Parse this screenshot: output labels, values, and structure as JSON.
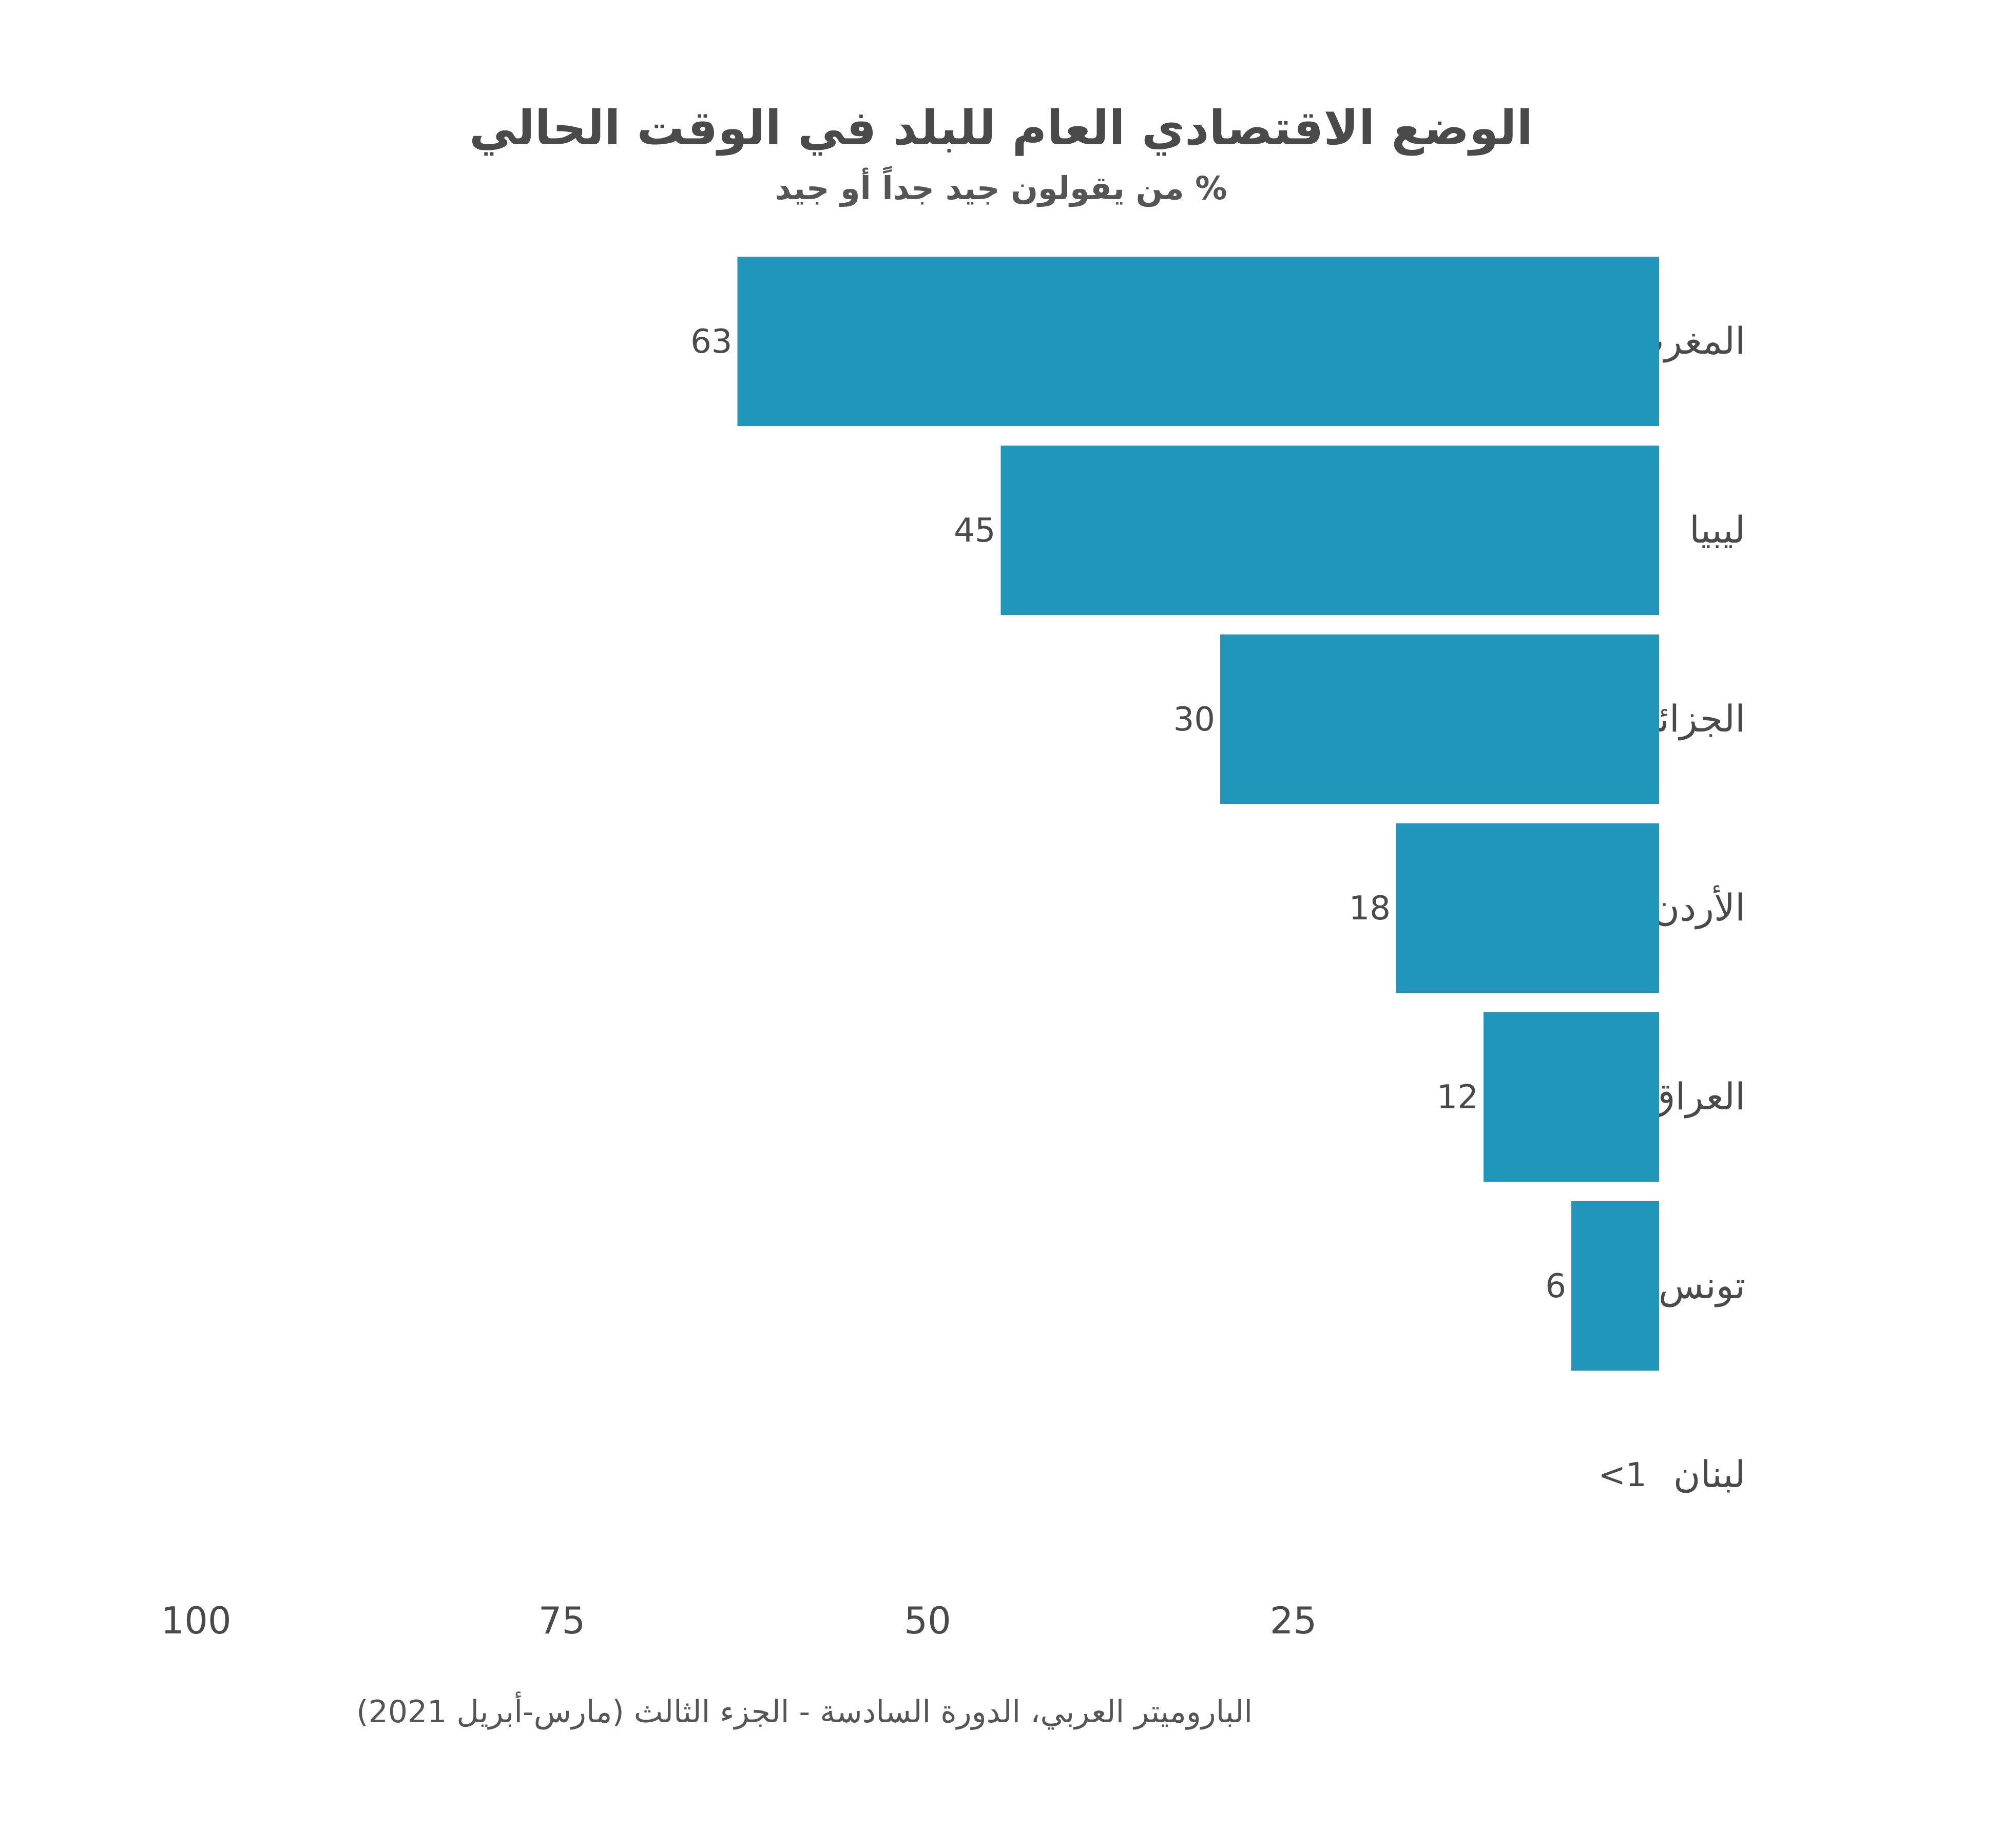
{
  "title": "الوضع الاقتصادي العام للبلد في الوقت الحالي",
  "subtitle": "% من يقولون جيد جداً أو جيد",
  "source": "الباروميتر العربي، الدورة السادسة - الجزء الثالث (مارس-أبريل 2021)",
  "colors": {
    "bar": "#2196bb",
    "text": "#4a4a4a"
  },
  "chart_data": {
    "type": "bar",
    "orientation": "horizontal",
    "direction": "right-to-left",
    "title": "الوضع الاقتصادي العام للبلد في الوقت الحالي",
    "subtitle": "% من يقولون جيد جداً أو جيد",
    "categories": [
      "المغرب",
      "ليبيا",
      "الجزائر",
      "الأردن",
      "العراق",
      "تونس",
      "لبنان"
    ],
    "values": [
      63,
      45,
      30,
      18,
      12,
      6,
      0.5
    ],
    "value_labels": [
      "63",
      "45",
      "30",
      "18",
      "12",
      "6",
      "<1"
    ],
    "xlim": [
      0,
      100
    ],
    "xticks": [
      25,
      50,
      75,
      100
    ],
    "xtick_labels": [
      "25",
      "50",
      "75",
      "100"
    ],
    "xlabel": "",
    "ylabel": "",
    "grid": false,
    "legend": "none"
  }
}
